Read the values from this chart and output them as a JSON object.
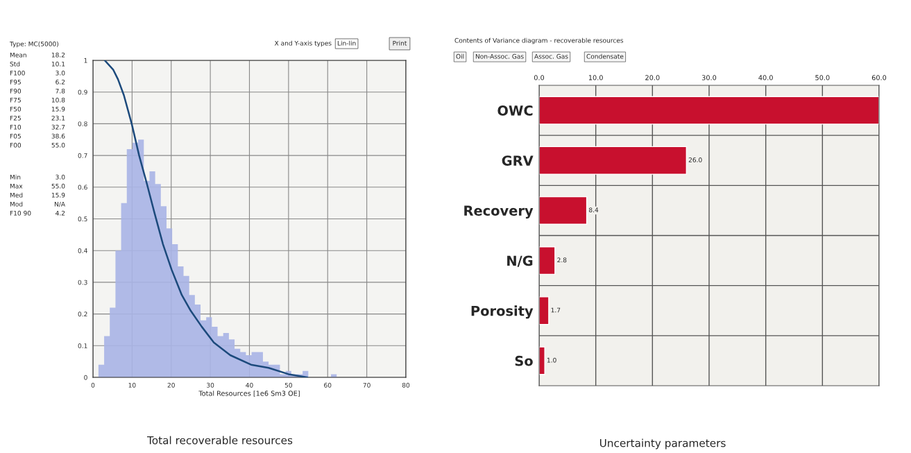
{
  "chart_data": [
    {
      "type": "histogram",
      "xlabel": "Total Resources [1e6 Sm3 OE]",
      "color": "#a9b4e6",
      "bins": [
        1.4,
        2.85,
        4.3,
        5.75,
        7.2,
        8.65,
        10.1,
        11.55,
        13.0,
        14.45,
        15.9,
        17.35,
        18.8,
        20.25,
        21.7,
        23.15,
        24.6,
        26.05,
        27.5,
        28.95,
        30.4,
        31.85,
        33.3,
        34.75,
        36.2,
        37.65,
        39.1,
        40.55,
        42.0,
        43.45,
        44.9,
        46.35,
        47.8,
        49.25,
        50.7,
        52.15,
        53.6,
        55.05,
        56.5,
        57.95,
        59.4,
        60.85,
        62.3
      ],
      "values": [
        0.04,
        0.13,
        0.22,
        0.4,
        0.55,
        0.72,
        0.74,
        0.75,
        0.62,
        0.65,
        0.61,
        0.54,
        0.47,
        0.42,
        0.35,
        0.32,
        0.26,
        0.23,
        0.18,
        0.19,
        0.16,
        0.13,
        0.14,
        0.12,
        0.09,
        0.08,
        0.07,
        0.08,
        0.08,
        0.05,
        0.04,
        0.04,
        0.01,
        0.02,
        0.01,
        0.01,
        0.02,
        0,
        0,
        0,
        0,
        0.01
      ],
      "series": [
        {
          "type": "line",
          "color": "#1c4a7c",
          "x": [
            3.0,
            5.2,
            6.4,
            7.9,
            9.9,
            11.8,
            13.8,
            15.7,
            17.9,
            20.1,
            22.7,
            25.0,
            27.8,
            30.9,
            35.1,
            40.4,
            44.9,
            50.0,
            54.8
          ],
          "values": [
            1.0,
            0.97,
            0.94,
            0.89,
            0.8,
            0.7,
            0.61,
            0.52,
            0.42,
            0.34,
            0.26,
            0.21,
            0.16,
            0.11,
            0.07,
            0.04,
            0.03,
            0.01,
            0.0
          ]
        }
      ],
      "xlim": [
        0,
        80
      ],
      "ylim": [
        0,
        1
      ],
      "xticks": [
        0,
        10,
        20,
        30,
        40,
        50,
        60,
        70,
        80
      ],
      "yticks": [
        0,
        0.1,
        0.2,
        0.3,
        0.4,
        0.5,
        0.6,
        0.7,
        0.8,
        0.9,
        1
      ],
      "grid": true,
      "annotations": [
        "Type: MC(5000)",
        "Mean 18.2",
        "Std 10.1",
        "F100 3.0",
        "F95 6.2",
        "F90 7.8",
        "F75 10.8",
        "F50 15.9",
        "F25 23.1",
        "F10 32.7",
        "F05 38.6",
        "F00 55.0",
        "Min 3.0",
        "Max 55.0",
        "Med 15.9",
        "Mod N/A",
        "F10 90 4.2",
        "X and Y-axis types",
        "Lin-lin",
        "Print",
        "Total recoverable resources"
      ]
    },
    {
      "type": "bar",
      "orientation": "horizontal",
      "title": "Contents of Variance diagram - recoverable resources",
      "categories": [
        "OWC",
        "GRV",
        "Recovery",
        "N/G",
        "Porosity",
        "So"
      ],
      "values": [
        60.0,
        26.0,
        8.4,
        2.8,
        1.7,
        1.0
      ],
      "value_labels": [
        null,
        "26.0",
        "8.4",
        "2.8",
        "1.7",
        "1.0"
      ],
      "color": "#c8102e",
      "xlim": [
        0,
        60
      ],
      "xticks": [
        {
          "value": 0,
          "label": "0.0"
        },
        {
          "value": 10,
          "label": "10.0"
        },
        {
          "value": 20,
          "label": "20.0"
        },
        {
          "value": 30,
          "label": "30.0"
        },
        {
          "value": 40,
          "label": "40.0"
        },
        {
          "value": 50,
          "label": "50.0"
        },
        {
          "value": 60,
          "label": "60.0"
        }
      ],
      "grid": true,
      "annotations": [
        "Oil",
        "Non-Assoc. Gas",
        "Assoc. Gas",
        "Condensate",
        "Uncertainty parameters"
      ]
    }
  ]
}
